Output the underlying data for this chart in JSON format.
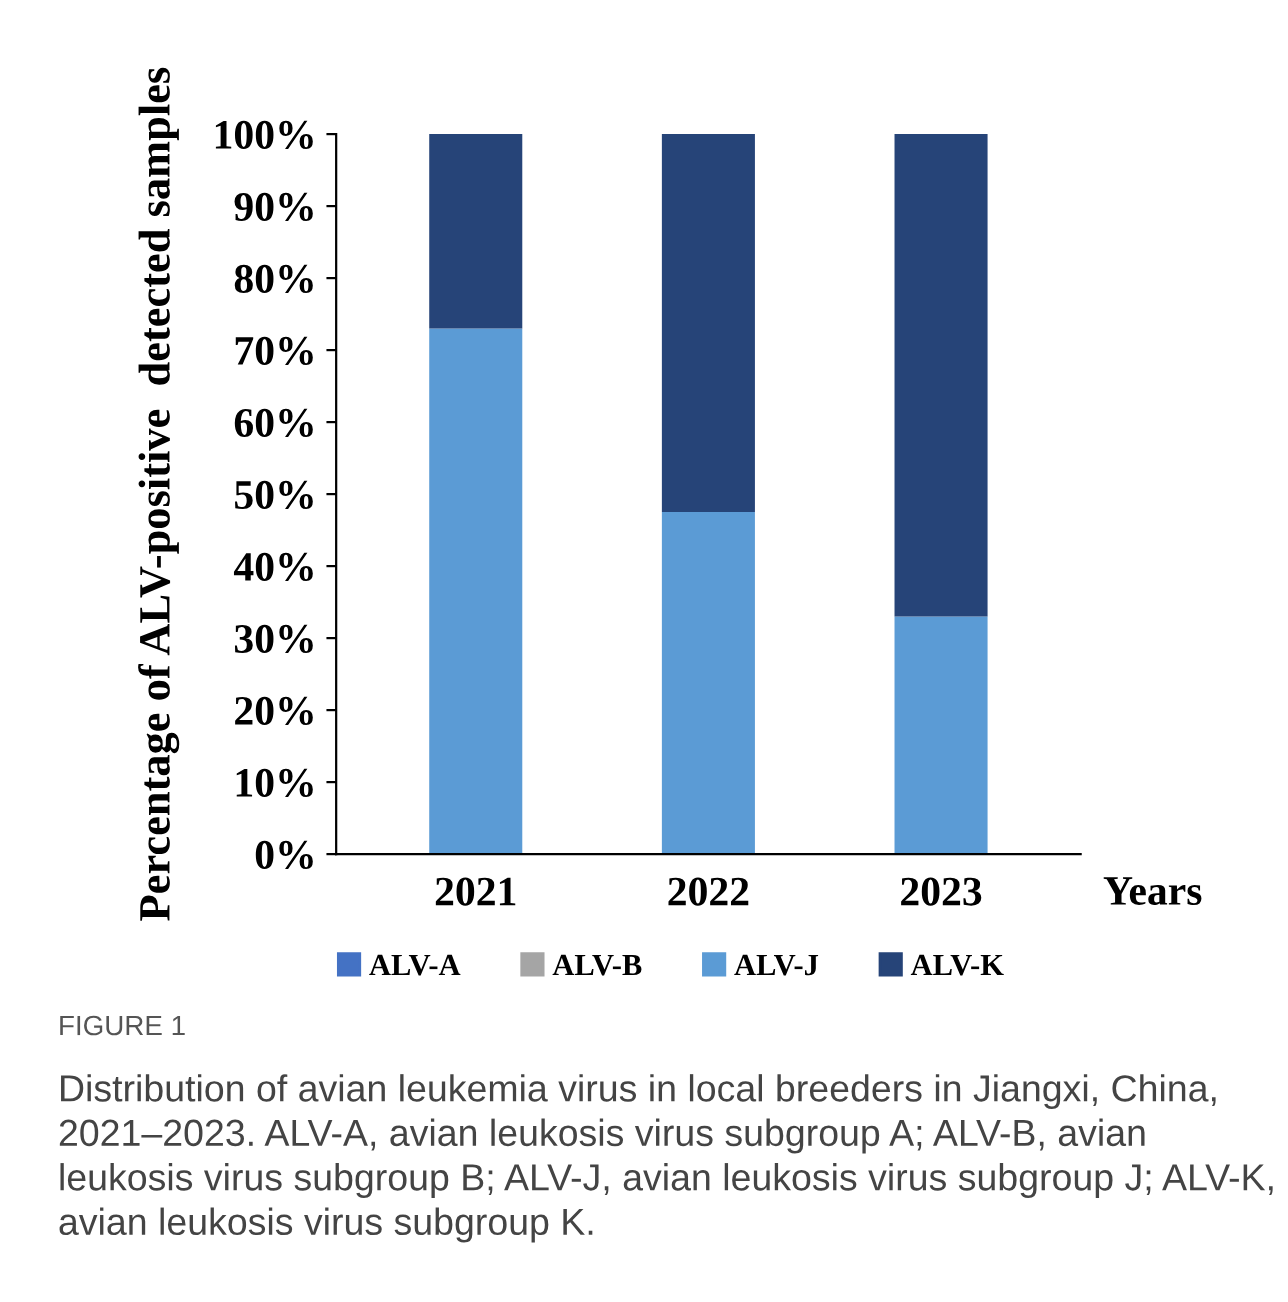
{
  "chart_data": {
    "type": "bar",
    "stacked": true,
    "categories": [
      "2021",
      "2022",
      "2023"
    ],
    "xlabel": "Years",
    "ylabel": "Percentage of ALV-positive  detected samples",
    "ylim": [
      0,
      100
    ],
    "yticks": [
      {
        "value": 0,
        "label": "0%"
      },
      {
        "value": 10,
        "label": "10%"
      },
      {
        "value": 20,
        "label": "20%"
      },
      {
        "value": 30,
        "label": "30%"
      },
      {
        "value": 40,
        "label": "40%"
      },
      {
        "value": 50,
        "label": "50%"
      },
      {
        "value": 60,
        "label": "60%"
      },
      {
        "value": 70,
        "label": "70%"
      },
      {
        "value": 80,
        "label": "80%"
      },
      {
        "value": 90,
        "label": "90%"
      },
      {
        "value": 100,
        "label": "100%"
      }
    ],
    "series": [
      {
        "name": "ALV-A",
        "color": "#4472c4",
        "values": [
          0,
          0,
          0
        ]
      },
      {
        "name": "ALV-B",
        "color": "#a5a5a5",
        "values": [
          0,
          0,
          0
        ]
      },
      {
        "name": "ALV-J",
        "color": "#5b9bd5",
        "values": [
          73,
          47.5,
          33
        ]
      },
      {
        "name": "ALV-K",
        "color": "#264478",
        "values": [
          27,
          52.5,
          67
        ]
      }
    ],
    "legend": "bottom",
    "grid": false,
    "annotations": [
      "FIGURE 1",
      "Distribution of avian leukemia virus in local breeders in Jiangxi, China, 2021–2023. ALV-A, avian leukosis virus subgroup A; ALV-B, avian leukosis virus subgroup B; ALV-J, avian leukosis virus subgroup J; ALV-K, avian leukosis virus subgroup K."
    ]
  }
}
